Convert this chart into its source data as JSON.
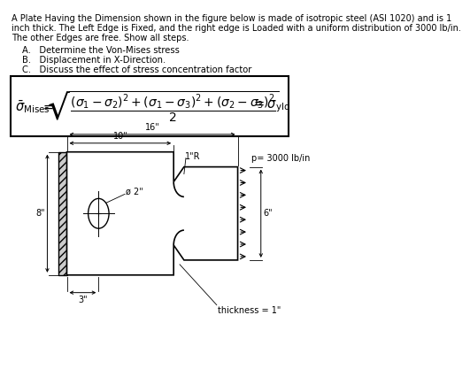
{
  "title_line1": "A Plate Having the Dimension shown in the figure below is made of isotropic steel (ASI 1020) and is 1",
  "title_line2": "inch thick. The Left Edge is Fixed, and the right edge is Loaded with a uniform distribution of 3000 lb/in.",
  "title_line3": "The other Edges are free. Show all steps.",
  "bullet_a": "A.   Determine the Von-Mises stress",
  "bullet_b": "B.   Displacement in X-Direction.",
  "bullet_c": "C.   Discuss the effect of stress concentration factor",
  "bg_color": "#ffffff",
  "dim_16": "16\"",
  "dim_10": "10\"",
  "dim_8": "8\"",
  "dim_3": "3\"",
  "dim_2": "ø 2\"",
  "dim_1R": "1\"R",
  "dim_6": "6\"",
  "pressure": "p= 3000 lb/in",
  "thickness": "thickness = 1\""
}
